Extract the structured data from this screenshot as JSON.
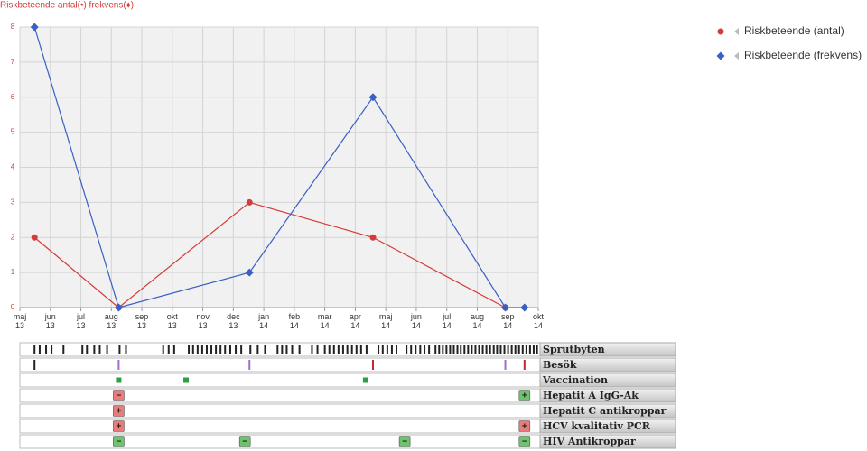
{
  "chart_data": {
    "type": "line",
    "title": "Riskbeteende antal(•) frekvens(♦)",
    "xlim": [
      0,
      17
    ],
    "xticks": [
      {
        "value": 0,
        "label": "maj 13"
      },
      {
        "value": 1,
        "label": "jun 13"
      },
      {
        "value": 2,
        "label": "jul 13"
      },
      {
        "value": 3,
        "label": "aug 13"
      },
      {
        "value": 4,
        "label": "sep 13"
      },
      {
        "value": 5,
        "label": "okt 13"
      },
      {
        "value": 6,
        "label": "nov 13"
      },
      {
        "value": 7,
        "label": "dec 13"
      },
      {
        "value": 8,
        "label": "jan 14"
      },
      {
        "value": 9,
        "label": "feb 14"
      },
      {
        "value": 10,
        "label": "mar 14"
      },
      {
        "value": 11,
        "label": "apr 14"
      },
      {
        "value": 12,
        "label": "maj 14"
      },
      {
        "value": 13,
        "label": "jun 14"
      },
      {
        "value": 14,
        "label": "jul 14"
      },
      {
        "value": 15,
        "label": "aug 14"
      },
      {
        "value": 16,
        "label": "sep 14"
      },
      {
        "value": 17,
        "label": "okt 14"
      }
    ],
    "ylim": [
      0,
      8
    ],
    "yticks": [
      0,
      1,
      2,
      3,
      4,
      5,
      6,
      7,
      8
    ],
    "grid": true,
    "legend": "right",
    "series": [
      {
        "name": "Riskbeteende (antal)",
        "color": "#d63a3a",
        "marker": "circle",
        "x": [
          0.48,
          3.24,
          7.53,
          11.58,
          15.92
        ],
        "values": [
          2,
          0,
          3,
          2,
          0
        ]
      },
      {
        "name": "Riskbeteende (frekvens)",
        "color": "#3a5fc4",
        "marker": "diamond",
        "x": [
          0.48,
          3.24,
          7.53,
          11.58,
          15.92,
          16.55
        ],
        "values": [
          8,
          0,
          1,
          6,
          0,
          0
        ]
      }
    ]
  },
  "tracks": [
    {
      "label": "Sprutbyten",
      "kind": "tick",
      "color": "#222",
      "events": [
        {
          "x": 0.48
        },
        {
          "x": 0.65
        },
        {
          "x": 0.86
        },
        {
          "x": 1.04
        },
        {
          "x": 1.43
        },
        {
          "x": 2.05
        },
        {
          "x": 2.2
        },
        {
          "x": 2.44
        },
        {
          "x": 2.62
        },
        {
          "x": 2.86
        },
        {
          "x": 3.27
        },
        {
          "x": 3.48
        },
        {
          "x": 4.7
        },
        {
          "x": 4.88
        },
        {
          "x": 5.06
        },
        {
          "x": 5.54
        },
        {
          "x": 5.68
        },
        {
          "x": 5.83
        },
        {
          "x": 5.98
        },
        {
          "x": 6.13
        },
        {
          "x": 6.28
        },
        {
          "x": 6.43
        },
        {
          "x": 6.58
        },
        {
          "x": 6.73
        },
        {
          "x": 6.9
        },
        {
          "x": 7.08
        },
        {
          "x": 7.26
        },
        {
          "x": 7.56
        },
        {
          "x": 7.8
        },
        {
          "x": 8.04
        },
        {
          "x": 8.45
        },
        {
          "x": 8.6
        },
        {
          "x": 8.75
        },
        {
          "x": 8.93
        },
        {
          "x": 9.17
        },
        {
          "x": 9.58
        },
        {
          "x": 9.76
        },
        {
          "x": 10.0
        },
        {
          "x": 10.15
        },
        {
          "x": 10.3
        },
        {
          "x": 10.45
        },
        {
          "x": 10.6
        },
        {
          "x": 10.74
        },
        {
          "x": 10.89
        },
        {
          "x": 11.04
        },
        {
          "x": 11.19
        },
        {
          "x": 11.37
        },
        {
          "x": 11.76
        },
        {
          "x": 11.9
        },
        {
          "x": 12.05
        },
        {
          "x": 12.2
        },
        {
          "x": 12.35
        },
        {
          "x": 12.68
        },
        {
          "x": 12.83
        },
        {
          "x": 12.98
        },
        {
          "x": 13.13
        },
        {
          "x": 13.27
        },
        {
          "x": 13.42
        },
        {
          "x": 13.63
        },
        {
          "x": 13.75
        },
        {
          "x": 13.87
        },
        {
          "x": 13.99
        },
        {
          "x": 14.11
        },
        {
          "x": 14.23
        },
        {
          "x": 14.35
        },
        {
          "x": 14.46
        },
        {
          "x": 14.58
        },
        {
          "x": 14.7
        },
        {
          "x": 14.82
        },
        {
          "x": 14.94
        },
        {
          "x": 15.06
        },
        {
          "x": 15.18
        },
        {
          "x": 15.3
        },
        {
          "x": 15.42
        },
        {
          "x": 15.54
        },
        {
          "x": 15.65
        },
        {
          "x": 15.77
        },
        {
          "x": 15.89
        },
        {
          "x": 16.01
        },
        {
          "x": 16.13
        },
        {
          "x": 16.25
        },
        {
          "x": 16.37
        },
        {
          "x": 16.49
        },
        {
          "x": 16.61
        },
        {
          "x": 16.73
        },
        {
          "x": 16.85
        },
        {
          "x": 16.96
        }
      ]
    },
    {
      "label": "Besök",
      "kind": "tick",
      "events": [
        {
          "x": 0.48,
          "color": "#222"
        },
        {
          "x": 3.24,
          "color": "#a070c8"
        },
        {
          "x": 7.53,
          "color": "#a070c8"
        },
        {
          "x": 11.58,
          "color": "#c8282c"
        },
        {
          "x": 15.92,
          "color": "#a070c8"
        },
        {
          "x": 16.55,
          "color": "#c8282c"
        }
      ]
    },
    {
      "label": "Vaccination",
      "kind": "square",
      "color": "#2fa040",
      "events": [
        {
          "x": 3.24
        },
        {
          "x": 5.45
        },
        {
          "x": 11.34
        }
      ]
    },
    {
      "label": "Hepatit A IgG-Ak",
      "kind": "badge",
      "events": [
        {
          "x": 3.24,
          "color": "#ea7b7b",
          "symbol": "−"
        },
        {
          "x": 16.55,
          "color": "#6cc46c",
          "symbol": "+"
        }
      ]
    },
    {
      "label": "Hepatit C antikroppar",
      "kind": "badge",
      "events": [
        {
          "x": 3.24,
          "color": "#ea7b7b",
          "symbol": "+"
        }
      ]
    },
    {
      "label": "HCV kvalitativ PCR",
      "kind": "badge",
      "events": [
        {
          "x": 3.24,
          "color": "#ea7b7b",
          "symbol": "+"
        },
        {
          "x": 16.55,
          "color": "#ea7b7b",
          "symbol": "+"
        }
      ]
    },
    {
      "label": "HIV Antikroppar",
      "kind": "badge",
      "events": [
        {
          "x": 3.24,
          "color": "#6cc46c",
          "symbol": "−"
        },
        {
          "x": 7.38,
          "color": "#6cc46c",
          "symbol": "−"
        },
        {
          "x": 12.62,
          "color": "#6cc46c",
          "symbol": "−"
        },
        {
          "x": 16.55,
          "color": "#6cc46c",
          "symbol": "−"
        }
      ]
    }
  ]
}
